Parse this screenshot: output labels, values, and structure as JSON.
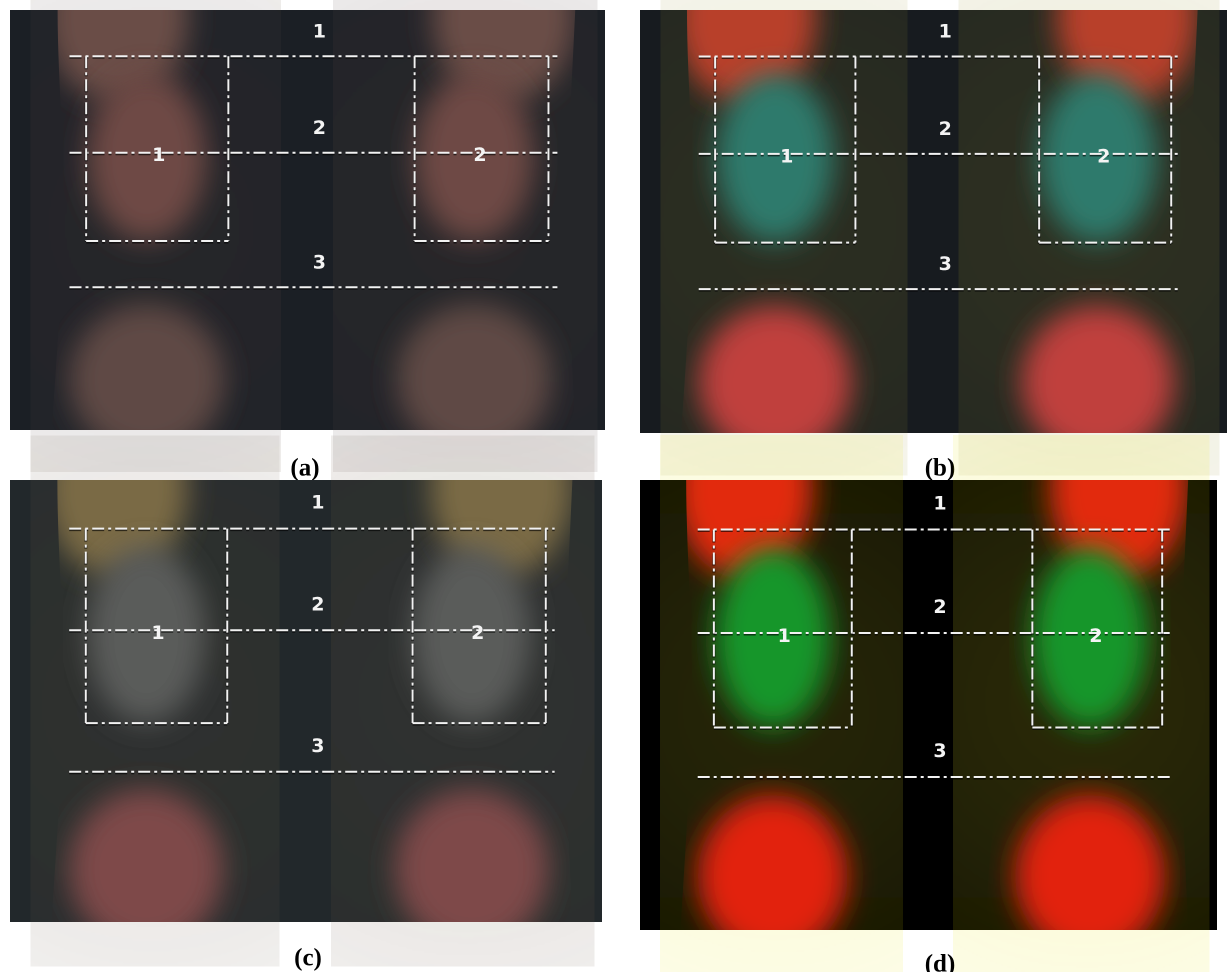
{
  "panels": [
    {
      "caption": "(a)",
      "line_labels": [
        "1",
        "2",
        "3"
      ],
      "box_labels": [
        "1",
        "2"
      ]
    },
    {
      "caption": "(b)",
      "line_labels": [
        "1",
        "2",
        "3"
      ],
      "box_labels": [
        "1",
        "2"
      ]
    },
    {
      "caption": "(c)",
      "line_labels": [
        "1",
        "2",
        "3"
      ],
      "box_labels": [
        "1",
        "2"
      ]
    },
    {
      "caption": "(d)",
      "line_labels": [
        "1",
        "2",
        "3"
      ],
      "box_labels": [
        "1",
        "2"
      ]
    }
  ]
}
